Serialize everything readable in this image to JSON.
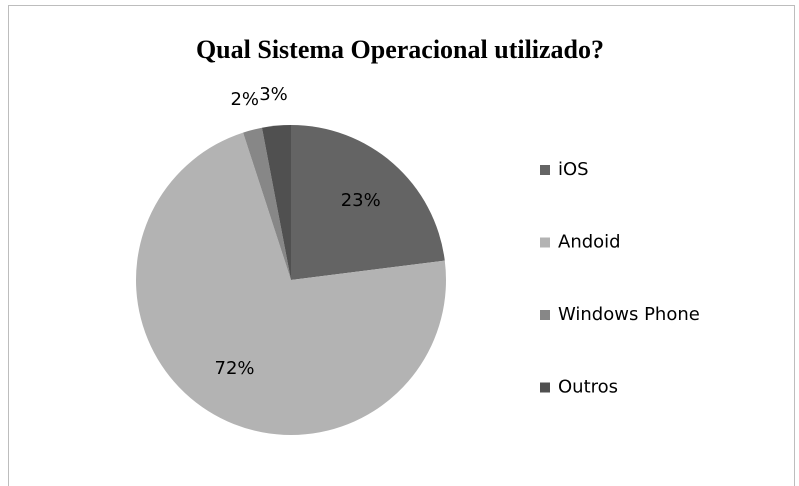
{
  "chart_data": {
    "type": "pie",
    "title": "Qual Sistema Operacional  utilizado?",
    "categories": [
      "iOS",
      "Andoid",
      "Windows Phone",
      "Outros"
    ],
    "values": [
      23,
      72,
      2,
      3
    ],
    "value_labels": [
      "23%",
      "72%",
      "2%",
      "3%"
    ],
    "colors": [
      "#646464",
      "#b3b3b3",
      "#878787",
      "#505050"
    ],
    "legend": "right"
  }
}
